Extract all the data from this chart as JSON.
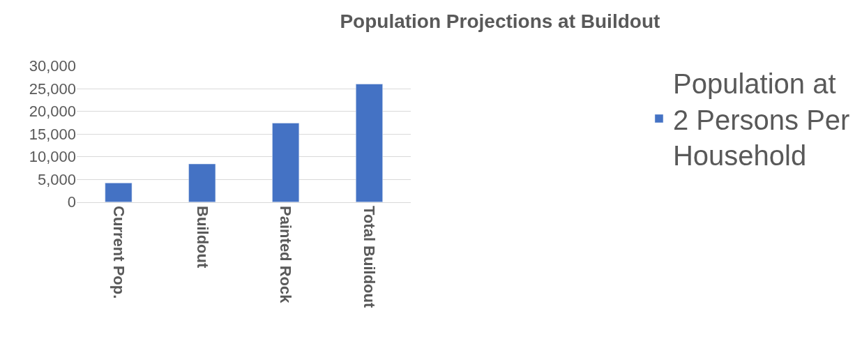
{
  "chart_data": {
    "type": "bar",
    "title": "Population Projections at Buildout",
    "categories": [
      "Current Pop.",
      "Buildout",
      "Painted Rock",
      "Total Buildout"
    ],
    "series": [
      {
        "name": "Population at\n2 Persons Per\nHousehold",
        "color": "#4472c4",
        "values": [
          4200,
          8400,
          17400,
          26000
        ]
      }
    ],
    "ylim": [
      0,
      30000
    ],
    "yticks": [
      {
        "value": 0,
        "label": "0"
      },
      {
        "value": 5000,
        "label": "5,000"
      },
      {
        "value": 10000,
        "label": "10,000"
      },
      {
        "value": 15000,
        "label": "15,000"
      },
      {
        "value": 20000,
        "label": "20,000"
      },
      {
        "value": 25000,
        "label": "25,000"
      },
      {
        "value": 30000,
        "label": "30,000"
      }
    ],
    "grid": "y",
    "legend": "right"
  }
}
